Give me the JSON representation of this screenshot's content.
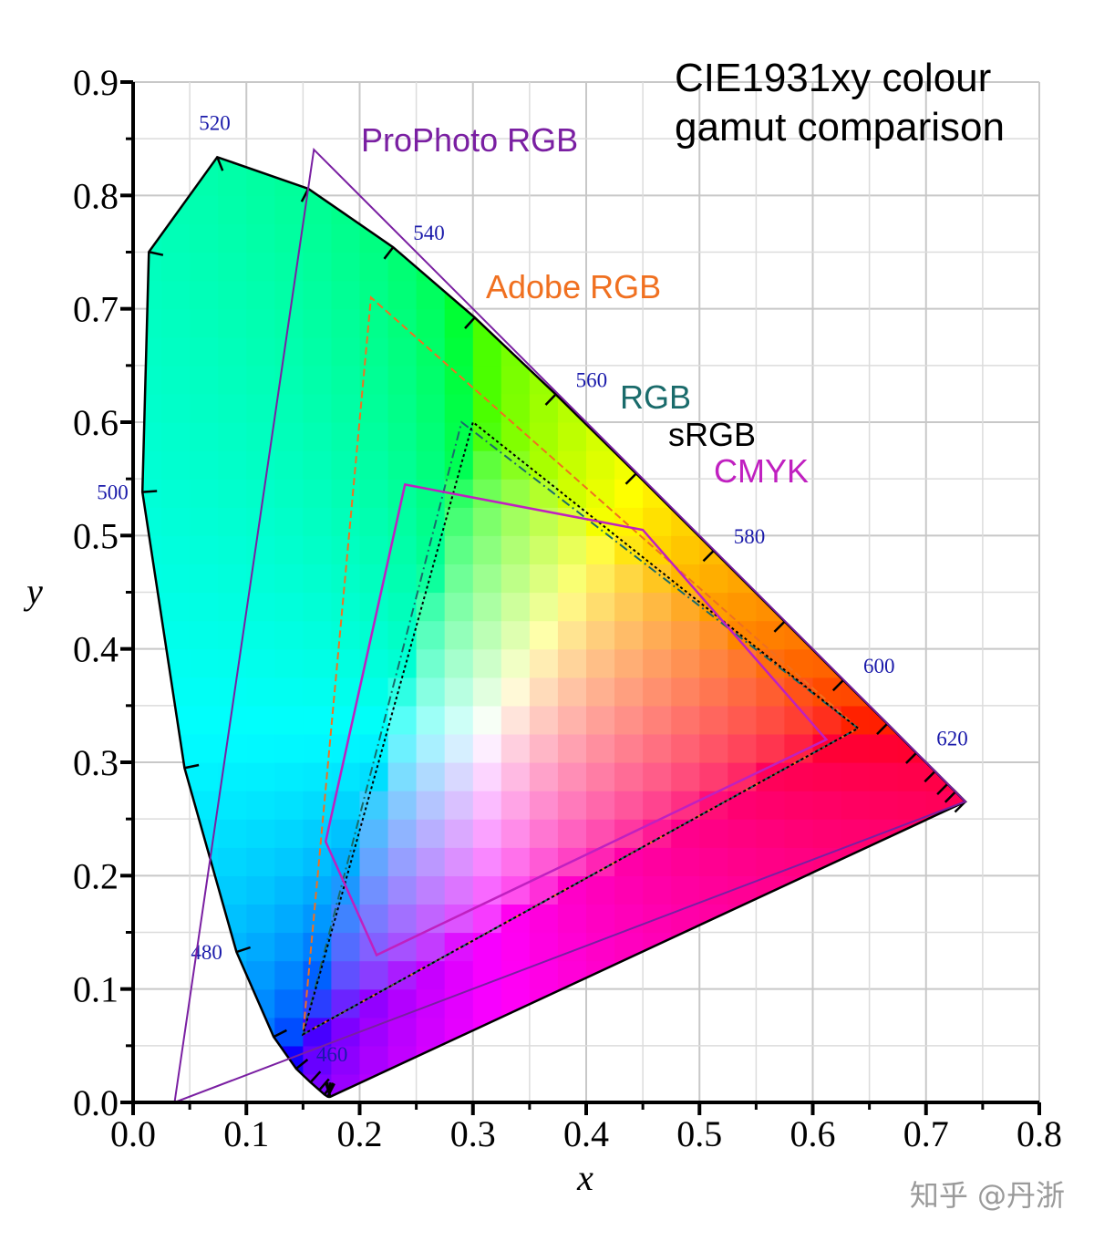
{
  "chart_data": {
    "type": "scatter",
    "title": "CIE1931xy colour\ngamut comparison",
    "xlabel": "x",
    "ylabel": "y",
    "xlim": [
      0.0,
      0.8
    ],
    "ylim": [
      0.0,
      0.9
    ],
    "x_ticks": [
      "0.0",
      "0.1",
      "0.2",
      "0.3",
      "0.4",
      "0.5",
      "0.6",
      "0.7",
      "0.8"
    ],
    "y_ticks": [
      "0.0",
      "0.1",
      "0.2",
      "0.3",
      "0.4",
      "0.5",
      "0.6",
      "0.7",
      "0.8",
      "0.9"
    ],
    "grid": true,
    "spectral_locus": [
      [
        0.1741,
        0.005
      ],
      [
        0.1738,
        0.0049
      ],
      [
        0.173,
        0.0048
      ],
      [
        0.1718,
        0.0051
      ],
      [
        0.1689,
        0.0069
      ],
      [
        0.1644,
        0.0109
      ],
      [
        0.1566,
        0.0177
      ],
      [
        0.144,
        0.0297
      ],
      [
        0.1241,
        0.0578
      ],
      [
        0.0913,
        0.1327
      ],
      [
        0.0454,
        0.295
      ],
      [
        0.0082,
        0.5384
      ],
      [
        0.0139,
        0.7502
      ],
      [
        0.0743,
        0.8338
      ],
      [
        0.1547,
        0.8059
      ],
      [
        0.2296,
        0.7543
      ],
      [
        0.3016,
        0.6923
      ],
      [
        0.3731,
        0.6245
      ],
      [
        0.4441,
        0.5547
      ],
      [
        0.5125,
        0.4866
      ],
      [
        0.5752,
        0.4242
      ],
      [
        0.627,
        0.3725
      ],
      [
        0.6658,
        0.334
      ],
      [
        0.6915,
        0.3083
      ],
      [
        0.7079,
        0.292
      ],
      [
        0.719,
        0.2809
      ],
      [
        0.726,
        0.274
      ],
      [
        0.7347,
        0.2653
      ]
    ],
    "wavelength_labels": [
      {
        "nm": "460",
        "x": 0.144,
        "y": 0.0297
      },
      {
        "nm": "480",
        "x": 0.0913,
        "y": 0.1327
      },
      {
        "nm": "500",
        "x": 0.0082,
        "y": 0.5384
      },
      {
        "nm": "520",
        "x": 0.0743,
        "y": 0.8338
      },
      {
        "nm": "540",
        "x": 0.2296,
        "y": 0.7543
      },
      {
        "nm": "560",
        "x": 0.3731,
        "y": 0.6245
      },
      {
        "nm": "580",
        "x": 0.5125,
        "y": 0.4866
      },
      {
        "nm": "600",
        "x": 0.627,
        "y": 0.3725
      },
      {
        "nm": "620",
        "x": 0.6915,
        "y": 0.3083
      }
    ],
    "series": [
      {
        "name": "ProPhoto RGB",
        "color": "#7a1fa2",
        "dash": "",
        "points": [
          [
            0.7347,
            0.2653
          ],
          [
            0.1596,
            0.8404
          ],
          [
            0.0366,
            0.0001
          ]
        ]
      },
      {
        "name": "Adobe RGB",
        "color": "#f07020",
        "dash": "8,4",
        "points": [
          [
            0.64,
            0.33
          ],
          [
            0.21,
            0.71
          ],
          [
            0.15,
            0.06
          ]
        ]
      },
      {
        "name": "RGB",
        "color": "#1a6b6b",
        "dash": "10,4,2,4",
        "points": [
          [
            0.64,
            0.33
          ],
          [
            0.29,
            0.6
          ],
          [
            0.15,
            0.06
          ]
        ]
      },
      {
        "name": "sRGB",
        "color": "#000000",
        "dash": "3,3",
        "points": [
          [
            0.64,
            0.33
          ],
          [
            0.3,
            0.6
          ],
          [
            0.15,
            0.06
          ]
        ]
      },
      {
        "name": "CMYK",
        "color": "#c020c0",
        "dash": "",
        "points": [
          [
            0.24,
            0.545
          ],
          [
            0.45,
            0.505
          ],
          [
            0.612,
            0.32
          ],
          [
            0.215,
            0.13
          ],
          [
            0.17,
            0.23
          ]
        ]
      }
    ]
  },
  "watermark": "知乎 @丹浙"
}
